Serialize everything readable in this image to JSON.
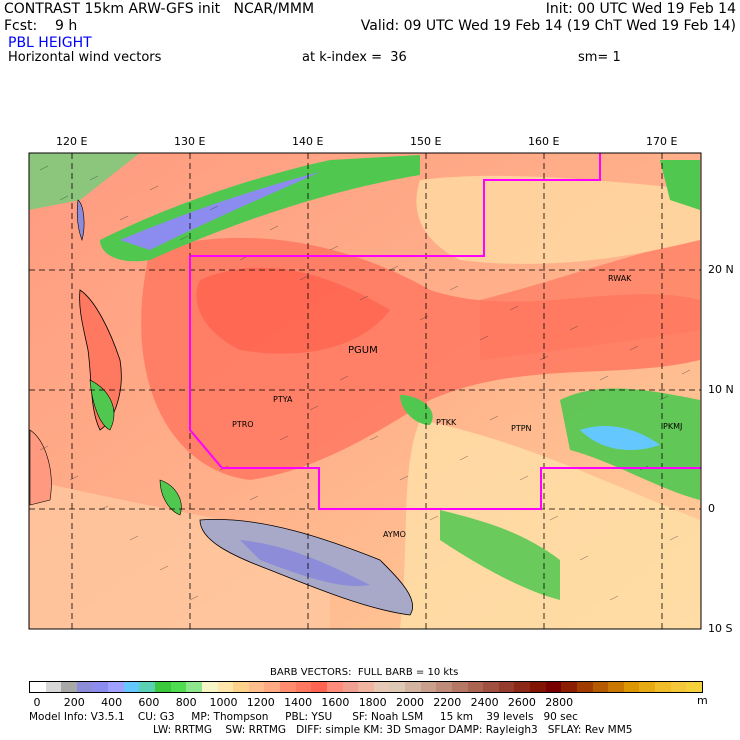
{
  "header": {
    "line1_left": "CONTRAST 15km ARW-GFS init   NCAR/MMM",
    "line1_right": "Init: 00 UTC Wed 19 Feb 14",
    "line2_left": "Fcst:    9 h",
    "line2_right": "Valid: 09 UTC Wed 19 Feb 14 (19 ChT Wed 19 Feb 14)",
    "field_title": "PBL HEIGHT",
    "field_subtitle": "Horizontal wind vectors",
    "k_index": "at k-index =  36",
    "smoothing": "sm= 1"
  },
  "axes": {
    "lon_labels": [
      "120 E",
      "130 E",
      "140 E",
      "150 E",
      "160 E",
      "170 E"
    ],
    "lat_labels": [
      "20 N",
      "10 N",
      "0",
      "10 S"
    ]
  },
  "stations": [
    "RWAK",
    "PGUM",
    "PTYA",
    "PTRO",
    "PTKK",
    "PTPN",
    "PKMJ",
    "AYMO"
  ],
  "barb_caption": "BARB VECTORS:  FULL BARB = 10 kts",
  "colorbar": {
    "labels": [
      "0",
      "200",
      "400",
      "600",
      "800",
      "1000",
      "1200",
      "1400",
      "1600",
      "1800",
      "2000",
      "2200",
      "2400",
      "2600",
      "2800"
    ],
    "unit": "m",
    "colors": [
      "#ffffff",
      "#d8d8d8",
      "#a8a8a8",
      "#8c8cd8",
      "#8c8cf0",
      "#a0a0ff",
      "#64c8ff",
      "#5ad0b4",
      "#3cc83c",
      "#50dc50",
      "#8ce68c",
      "#f5f5c8",
      "#ffe6aa",
      "#ffd28c",
      "#ffbe8c",
      "#ffaa82",
      "#ff8c6e",
      "#ff7860",
      "#ff6450",
      "#ff8c7a",
      "#f0a090",
      "#f0b4a0",
      "#e6c8b4",
      "#dcc8b4",
      "#d2b4a0",
      "#c8a08c",
      "#be8c78",
      "#b47864",
      "#aa6450",
      "#a05040",
      "#963c2c",
      "#8c2818",
      "#821404",
      "#780000",
      "#8c1e00",
      "#a03c00",
      "#b45a00",
      "#c87800",
      "#dc9600",
      "#e6aa14",
      "#f0be28",
      "#f5c83c",
      "#f5d23c"
    ]
  },
  "footer": {
    "line1": "Model Info: V3.5.1    CU: G3     MP: Thompson     PBL: YSU      SF: Noah LSM     15 km    39 levels   90 sec",
    "line2": "LW: RRTMG    SW: RRTMG   DIFF: simple KM: 3D Smagor DAMP: Rayleigh3   SFLAY: Rev MM5"
  }
}
